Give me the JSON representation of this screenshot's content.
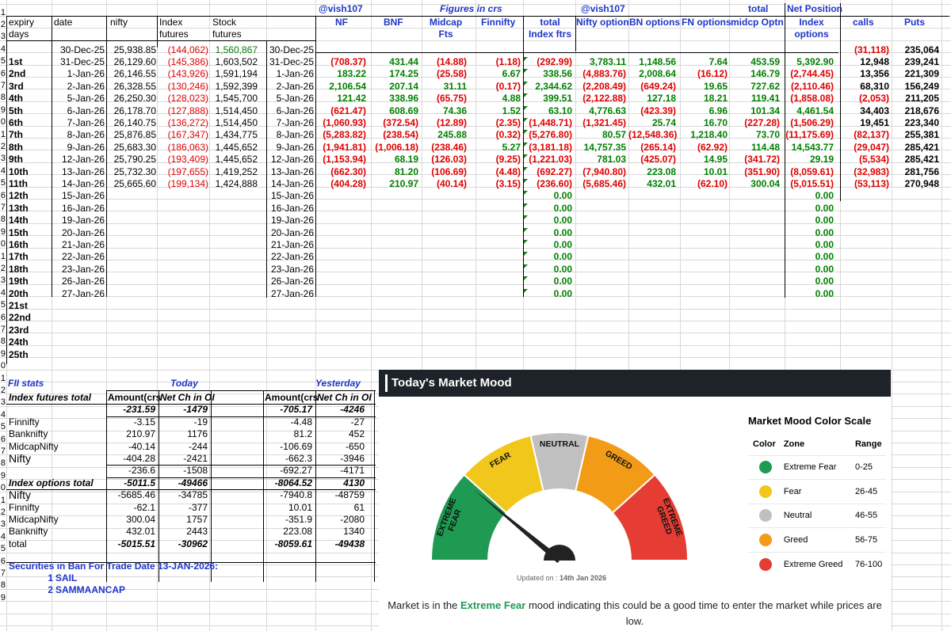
{
  "headers": {
    "twitter_handle": "@vish107",
    "figures_in_crs": "Figures in crs",
    "total": "total",
    "net_position": "Net Position",
    "expiry": "expiry",
    "days": "days",
    "date": "date",
    "nifty": "nifty",
    "index": "Index",
    "futures": "futures",
    "stock": "Stock",
    "nf": "NF",
    "bnf": "BNF",
    "midcap": "Midcap",
    "fts": "Fts",
    "finnifty": "Finnifty",
    "index_ftrs": "Index ftrs",
    "nifty_options": "Nifty options",
    "bn_options": "BN options",
    "fn_options": "FN options",
    "midcp_optns": "midcp Optns",
    "options": "options",
    "calls": "calls",
    "puts": "Puts"
  },
  "row_numbers": [
    "1",
    "2",
    "3",
    "4",
    "5",
    "6",
    "7",
    "8",
    "9",
    "10",
    "11",
    "12",
    "13",
    "14",
    "15",
    "16",
    "17",
    "18",
    "19",
    "20",
    "21",
    "22",
    "23",
    "24",
    "25",
    "26",
    "27",
    "28",
    "29",
    "30",
    "31",
    "32",
    "33",
    "34",
    "35",
    "36",
    "37",
    "38",
    "39",
    "40",
    "41",
    "42",
    "43",
    "44",
    "45",
    "46",
    "47",
    "48",
    "49"
  ],
  "main_rows": [
    {
      "expiry": "",
      "date": "30-Dec-25",
      "nifty": "25,938.85",
      "idx_fut": "(144,062)",
      "stock_fut": "1,560,867",
      "date2": "30-Dec-25",
      "nf": "",
      "bnf": "",
      "midcap": "",
      "finnifty": "",
      "total_idx": "",
      "nifty_opt": "",
      "bn_opt": "",
      "fn_opt": "",
      "midcp_opt": "",
      "net_pos": "",
      "calls": "(31,118)",
      "puts": "235,064"
    },
    {
      "expiry": "1st",
      "date": "31-Dec-25",
      "nifty": "26,129.60",
      "idx_fut": "(145,386)",
      "stock_fut": "1,603,502",
      "date2": "31-Dec-25",
      "nf": "(708.37)",
      "bnf": "431.44",
      "midcap": "(14.88)",
      "finnifty": "(1.18)",
      "total_idx": "(292.99)",
      "nifty_opt": "3,783.11",
      "bn_opt": "1,148.56",
      "fn_opt": "7.64",
      "midcp_opt": "453.59",
      "net_pos": "5,392.90",
      "calls": "12,948",
      "puts": "239,241"
    },
    {
      "expiry": "2nd",
      "date": "1-Jan-26",
      "nifty": "26,146.55",
      "idx_fut": "(143,926)",
      "stock_fut": "1,591,194",
      "date2": "1-Jan-26",
      "nf": "183.22",
      "bnf": "174.25",
      "midcap": "(25.58)",
      "finnifty": "6.67",
      "total_idx": "338.56",
      "nifty_opt": "(4,883.76)",
      "bn_opt": "2,008.64",
      "fn_opt": "(16.12)",
      "midcp_opt": "146.79",
      "net_pos": "(2,744.45)",
      "calls": "13,356",
      "puts": "221,309"
    },
    {
      "expiry": "3rd",
      "date": "2-Jan-26",
      "nifty": "26,328.55",
      "idx_fut": "(130,246)",
      "stock_fut": "1,592,399",
      "date2": "2-Jan-26",
      "nf": "2,106.54",
      "bnf": "207.14",
      "midcap": "31.11",
      "finnifty": "(0.17)",
      "total_idx": "2,344.62",
      "nifty_opt": "(2,208.49)",
      "bn_opt": "(649.24)",
      "fn_opt": "19.65",
      "midcp_opt": "727.62",
      "net_pos": "(2,110.46)",
      "calls": "68,310",
      "puts": "156,249"
    },
    {
      "expiry": "4th",
      "date": "5-Jan-26",
      "nifty": "26,250.30",
      "idx_fut": "(128,023)",
      "stock_fut": "1,545,700",
      "date2": "5-Jan-26",
      "nf": "121.42",
      "bnf": "338.96",
      "midcap": "(65.75)",
      "finnifty": "4.88",
      "total_idx": "399.51",
      "nifty_opt": "(2,122.88)",
      "bn_opt": "127.18",
      "fn_opt": "18.21",
      "midcp_opt": "119.41",
      "net_pos": "(1,858.08)",
      "calls": "(2,053)",
      "puts": "211,205"
    },
    {
      "expiry": "5th",
      "date": "6-Jan-26",
      "nifty": "26,178.70",
      "idx_fut": "(127,888)",
      "stock_fut": "1,514,450",
      "date2": "6-Jan-26",
      "nf": "(621.47)",
      "bnf": "608.69",
      "midcap": "74.36",
      "finnifty": "1.52",
      "total_idx": "63.10",
      "nifty_opt": "4,776.63",
      "bn_opt": "(423.39)",
      "fn_opt": "6.96",
      "midcp_opt": "101.34",
      "net_pos": "4,461.54",
      "calls": "34,403",
      "puts": "218,676"
    },
    {
      "expiry": "6th",
      "date": "7-Jan-26",
      "nifty": "26,140.75",
      "idx_fut": "(136,272)",
      "stock_fut": "1,514,450",
      "date2": "7-Jan-26",
      "nf": "(1,060.93)",
      "bnf": "(372.54)",
      "midcap": "(12.89)",
      "finnifty": "(2.35)",
      "total_idx": "(1,448.71)",
      "nifty_opt": "(1,321.45)",
      "bn_opt": "25.74",
      "fn_opt": "16.70",
      "midcp_opt": "(227.28)",
      "net_pos": "(1,506.29)",
      "calls": "19,451",
      "puts": "223,340"
    },
    {
      "expiry": "7th",
      "date": "8-Jan-26",
      "nifty": "25,876.85",
      "idx_fut": "(167,347)",
      "stock_fut": "1,434,775",
      "date2": "8-Jan-26",
      "nf": "(5,283.82)",
      "bnf": "(238.54)",
      "midcap": "245.88",
      "finnifty": "(0.32)",
      "total_idx": "(5,276.80)",
      "nifty_opt": "80.57",
      "bn_opt": "(12,548.36)",
      "fn_opt": "1,218.40",
      "midcp_opt": "73.70",
      "net_pos": "(11,175.69)",
      "calls": "(82,137)",
      "puts": "255,381"
    },
    {
      "expiry": "8th",
      "date": "9-Jan-26",
      "nifty": "25,683.30",
      "idx_fut": "(186,063)",
      "stock_fut": "1,445,652",
      "date2": "9-Jan-26",
      "nf": "(1,941.81)",
      "bnf": "(1,006.18)",
      "midcap": "(238.46)",
      "finnifty": "5.27",
      "total_idx": "(3,181.18)",
      "nifty_opt": "14,757.35",
      "bn_opt": "(265.14)",
      "fn_opt": "(62.92)",
      "midcp_opt": "114.48",
      "net_pos": "14,543.77",
      "calls": "(29,047)",
      "puts": "285,421"
    },
    {
      "expiry": "9th",
      "date": "12-Jan-26",
      "nifty": "25,790.25",
      "idx_fut": "(193,409)",
      "stock_fut": "1,445,652",
      "date2": "12-Jan-26",
      "nf": "(1,153.94)",
      "bnf": "68.19",
      "midcap": "(126.03)",
      "finnifty": "(9.25)",
      "total_idx": "(1,221.03)",
      "nifty_opt": "781.03",
      "bn_opt": "(425.07)",
      "fn_opt": "14.95",
      "midcp_opt": "(341.72)",
      "net_pos": "29.19",
      "calls": "(5,534)",
      "puts": "285,421"
    },
    {
      "expiry": "10th",
      "date": "13-Jan-26",
      "nifty": "25,732.30",
      "idx_fut": "(197,655)",
      "stock_fut": "1,419,252",
      "date2": "13-Jan-26",
      "nf": "(662.30)",
      "bnf": "81.20",
      "midcap": "(106.69)",
      "finnifty": "(4.48)",
      "total_idx": "(692.27)",
      "nifty_opt": "(7,940.80)",
      "bn_opt": "223.08",
      "fn_opt": "10.01",
      "midcp_opt": "(351.90)",
      "net_pos": "(8,059.61)",
      "calls": "(32,983)",
      "puts": "281,756"
    },
    {
      "expiry": "11th",
      "date": "14-Jan-26",
      "nifty": "25,665.60",
      "idx_fut": "(199,134)",
      "stock_fut": "1,424,888",
      "date2": "14-Jan-26",
      "nf": "(404.28)",
      "bnf": "210.97",
      "midcap": "(40.14)",
      "finnifty": "(3.15)",
      "total_idx": "(236.60)",
      "nifty_opt": "(5,685.46)",
      "bn_opt": "432.01",
      "fn_opt": "(62.10)",
      "midcp_opt": "300.04",
      "net_pos": "(5,015.51)",
      "calls": "(53,113)",
      "puts": "270,948"
    },
    {
      "expiry": "12th",
      "date": "15-Jan-26",
      "date2": "15-Jan-26",
      "total_idx": "0.00",
      "net_pos": "0.00"
    },
    {
      "expiry": "13th",
      "date": "16-Jan-26",
      "date2": "16-Jan-26",
      "total_idx": "0.00",
      "net_pos": "0.00"
    },
    {
      "expiry": "14th",
      "date": "19-Jan-26",
      "date2": "19-Jan-26",
      "total_idx": "0.00",
      "net_pos": "0.00"
    },
    {
      "expiry": "15th",
      "date": "20-Jan-26",
      "date2": "20-Jan-26",
      "total_idx": "0.00",
      "net_pos": "0.00"
    },
    {
      "expiry": "16th",
      "date": "21-Jan-26",
      "date2": "21-Jan-26",
      "total_idx": "0.00",
      "net_pos": "0.00"
    },
    {
      "expiry": "17th",
      "date": "22-Jan-26",
      "date2": "22-Jan-26",
      "total_idx": "0.00",
      "net_pos": "0.00"
    },
    {
      "expiry": "18th",
      "date": "23-Jan-26",
      "date2": "23-Jan-26",
      "total_idx": "0.00",
      "net_pos": "0.00"
    },
    {
      "expiry": "19th",
      "date": "26-Jan-26",
      "date2": "26-Jan-26",
      "total_idx": "0.00",
      "net_pos": "0.00"
    },
    {
      "expiry": "20th",
      "date": "27-Jan-26",
      "date2": "27-Jan-26",
      "total_idx": "0.00",
      "net_pos": "0.00"
    },
    {
      "expiry": "21st"
    },
    {
      "expiry": "22nd"
    },
    {
      "expiry": "23rd"
    },
    {
      "expiry": "24th"
    },
    {
      "expiry": "25th"
    }
  ],
  "fii": {
    "fii_stats": "FII stats",
    "today": "Today",
    "yesterday": "Yesterday",
    "col_amount": "Amount(crs",
    "col_net_ch": "Net Ch in OI",
    "rows": [
      {
        "label": "Index futures total",
        "bold": true,
        "a": "",
        "b": "",
        "c": "",
        "d": ""
      },
      {
        "label": "",
        "a": "-231.59",
        "b": "-1479",
        "c": "-705.17",
        "d": "-4246",
        "bi": true
      },
      {
        "label": "Finnifty",
        "a": "-3.15",
        "b": "-19",
        "c": "-4.48",
        "d": "-27"
      },
      {
        "label": "Banknifty",
        "a": "210.97",
        "b": "1176",
        "c": "81.2",
        "d": "452"
      },
      {
        "label": "MidcapNifty",
        "a": "-40.14",
        "b": "-244",
        "c": "-106.69",
        "d": "-650"
      },
      {
        "label": "Nifty",
        "big": true,
        "a": "-404.28",
        "b": "-2421",
        "c": "-662.3",
        "d": "-3946"
      },
      {
        "label": "",
        "a": "-236.6",
        "b": "-1508",
        "c": "-692.27",
        "d": "-4171"
      },
      {
        "label": "Index options total",
        "bold": true,
        "a": "-5011.5",
        "b": "-49466",
        "c": "-8064.52",
        "d": "4130",
        "bi": true
      },
      {
        "label": "Nifty",
        "big": true,
        "a": "-5685.46",
        "b": "-34785",
        "c": "-7940.8",
        "d": "-48759"
      },
      {
        "label": "Finnifty",
        "a": "-62.1",
        "b": "-377",
        "c": "10.01",
        "d": "61"
      },
      {
        "label": "MidcapNifty",
        "a": "300.04",
        "b": "1757",
        "c": "-351.9",
        "d": "-2080"
      },
      {
        "label": "Banknifty",
        "a": "432.01",
        "b": "2443",
        "c": "223.08",
        "d": "1340"
      },
      {
        "label": "total",
        "a": "-5015.51",
        "b": "-30962",
        "c": "-8059.61",
        "d": "-49438",
        "bi": true
      }
    ],
    "ban_title": "Securities in Ban For Trade Date 13-JAN-2026:",
    "ban_list": [
      {
        "n": "1",
        "name": "SAIL"
      },
      {
        "n": "2",
        "name": "SAMMAANCAP"
      }
    ]
  },
  "mood": {
    "title": "Today's Market Mood",
    "scale_title": "Market Mood Color Scale",
    "col_color": "Color",
    "col_zone": "Zone",
    "col_range": "Range",
    "zones": [
      {
        "zone": "Extreme Fear",
        "range": "0-25",
        "color": "#1e9a52"
      },
      {
        "zone": "Fear",
        "range": "26-45",
        "color": "#f2c71b"
      },
      {
        "zone": "Neutral",
        "range": "46-55",
        "color": "#c0c0c0"
      },
      {
        "zone": "Greed",
        "range": "56-75",
        "color": "#f29b16"
      },
      {
        "zone": "Extreme Greed",
        "range": "76-100",
        "color": "#e53d33"
      }
    ],
    "gauge": {
      "labels": [
        "EXTREME FEAR",
        "FEAR",
        "NEUTRAL",
        "GREED",
        "EXTREME GREED"
      ],
      "value": 22
    },
    "updated_prefix": "Updated on : ",
    "updated_date": "14th Jan 2026",
    "message_1": "Market is in the ",
    "message_hi": "Extreme Fear",
    "message_2": " mood indicating this could be a good time to enter the market while prices are low."
  }
}
